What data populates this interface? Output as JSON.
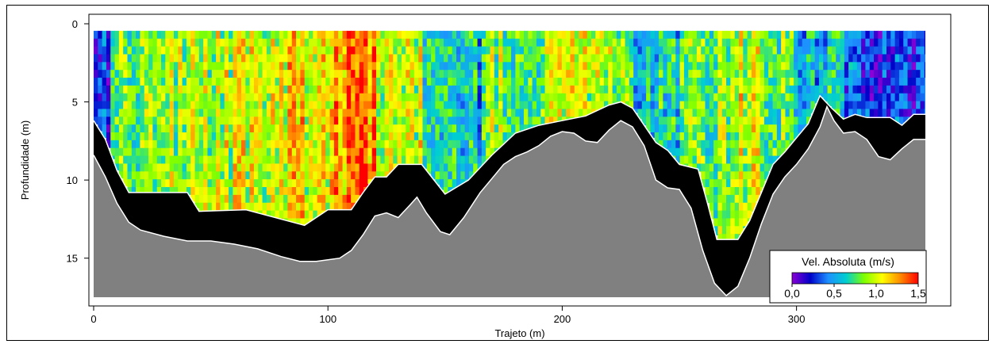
{
  "chart_data": {
    "type": "heatmap",
    "xlabel": "Trajeto (m)",
    "ylabel": "Profundidade (m)",
    "xlim": [
      0,
      355
    ],
    "ylim": [
      0,
      17.5
    ],
    "x_ticks": [
      {
        "value": 0,
        "label": "0"
      },
      {
        "value": 100,
        "label": "100"
      },
      {
        "value": 200,
        "label": "200"
      },
      {
        "value": 300,
        "label": "300"
      }
    ],
    "y_ticks": [
      {
        "value": 0,
        "label": "0"
      },
      {
        "value": 5,
        "label": "5"
      },
      {
        "value": 10,
        "label": "10"
      },
      {
        "value": 15,
        "label": "15"
      }
    ],
    "colorbar": {
      "title": "Vel. Absoluta (m/s)",
      "min": 0.0,
      "max": 1.5,
      "ticks": [
        {
          "value": 0.0,
          "label": "0,0"
        },
        {
          "value": 0.5,
          "label": "0,5"
        },
        {
          "value": 1.0,
          "label": "1,0"
        },
        {
          "value": 1.5,
          "label": "1,5"
        }
      ],
      "colors": [
        "#8b00d6",
        "#0000c8",
        "#1e90ff",
        "#00ced1",
        "#7fff00",
        "#ffff00",
        "#ff8c00",
        "#ff0000"
      ]
    },
    "colors": {
      "bottom": "#808080",
      "no_data": "#000000",
      "bottom_line": "#ffffff"
    },
    "bottom_profile": [
      [
        0,
        8.4
      ],
      [
        5,
        9.8
      ],
      [
        10,
        11.5
      ],
      [
        15,
        12.7
      ],
      [
        20,
        13.2
      ],
      [
        30,
        13.6
      ],
      [
        40,
        13.9
      ],
      [
        50,
        13.9
      ],
      [
        60,
        14.1
      ],
      [
        70,
        14.4
      ],
      [
        80,
        14.9
      ],
      [
        88,
        15.2
      ],
      [
        95,
        15.2
      ],
      [
        100,
        15.1
      ],
      [
        105,
        15.0
      ],
      [
        110,
        14.5
      ],
      [
        115,
        13.5
      ],
      [
        120,
        12.3
      ],
      [
        125,
        12.1
      ],
      [
        130,
        12.4
      ],
      [
        135,
        11.6
      ],
      [
        138,
        11.1
      ],
      [
        142,
        12.1
      ],
      [
        148,
        13.3
      ],
      [
        152,
        13.5
      ],
      [
        158,
        12.4
      ],
      [
        165,
        10.8
      ],
      [
        170,
        9.9
      ],
      [
        175,
        9.0
      ],
      [
        180,
        8.5
      ],
      [
        185,
        8.2
      ],
      [
        190,
        7.8
      ],
      [
        195,
        7.2
      ],
      [
        200,
        6.9
      ],
      [
        205,
        7.0
      ],
      [
        210,
        7.5
      ],
      [
        215,
        7.6
      ],
      [
        220,
        6.8
      ],
      [
        225,
        6.2
      ],
      [
        230,
        6.6
      ],
      [
        235,
        7.8
      ],
      [
        240,
        10.0
      ],
      [
        245,
        10.5
      ],
      [
        250,
        10.6
      ],
      [
        255,
        11.8
      ],
      [
        260,
        14.5
      ],
      [
        265,
        16.6
      ],
      [
        270,
        17.4
      ],
      [
        275,
        16.8
      ],
      [
        280,
        15.0
      ],
      [
        285,
        12.8
      ],
      [
        290,
        10.9
      ],
      [
        295,
        9.8
      ],
      [
        300,
        9.0
      ],
      [
        305,
        8.0
      ],
      [
        310,
        6.6
      ],
      [
        313,
        5.3
      ],
      [
        316,
        6.2
      ],
      [
        320,
        7.0
      ],
      [
        325,
        6.9
      ],
      [
        330,
        7.4
      ],
      [
        335,
        8.5
      ],
      [
        340,
        8.7
      ],
      [
        345,
        8.0
      ],
      [
        350,
        7.4
      ],
      [
        355,
        7.4
      ]
    ],
    "data_bottom_profile": [
      [
        0,
        6.2
      ],
      [
        5,
        7.4
      ],
      [
        10,
        9.4
      ],
      [
        15,
        10.8
      ],
      [
        40,
        10.8
      ],
      [
        45,
        12.0
      ],
      [
        65,
        11.9
      ],
      [
        90,
        12.9
      ],
      [
        100,
        11.9
      ],
      [
        110,
        11.9
      ],
      [
        115,
        10.8
      ],
      [
        120,
        9.8
      ],
      [
        125,
        9.8
      ],
      [
        130,
        9.0
      ],
      [
        140,
        9.0
      ],
      [
        150,
        10.9
      ],
      [
        160,
        10.0
      ],
      [
        165,
        9.2
      ],
      [
        170,
        8.4
      ],
      [
        180,
        7.0
      ],
      [
        190,
        6.5
      ],
      [
        200,
        6.2
      ],
      [
        210,
        5.9
      ],
      [
        220,
        5.2
      ],
      [
        225,
        5.0
      ],
      [
        230,
        5.4
      ],
      [
        240,
        7.6
      ],
      [
        245,
        8.1
      ],
      [
        250,
        9.0
      ],
      [
        258,
        9.3
      ],
      [
        262,
        11.5
      ],
      [
        266,
        13.8
      ],
      [
        275,
        13.8
      ],
      [
        280,
        12.6
      ],
      [
        285,
        10.8
      ],
      [
        290,
        9.0
      ],
      [
        295,
        8.2
      ],
      [
        300,
        7.3
      ],
      [
        305,
        6.4
      ],
      [
        310,
        4.6
      ],
      [
        315,
        5.4
      ],
      [
        320,
        6.1
      ],
      [
        325,
        5.8
      ],
      [
        330,
        6.0
      ],
      [
        340,
        6.0
      ],
      [
        345,
        6.5
      ],
      [
        350,
        5.8
      ],
      [
        355,
        5.8
      ]
    ],
    "regions": [
      {
        "x": [
          0,
          8
        ],
        "level": 0.35
      },
      {
        "x": [
          8,
          30
        ],
        "level": 0.75
      },
      {
        "x": [
          30,
          60
        ],
        "level": 0.95
      },
      {
        "x": [
          60,
          90
        ],
        "level": 1.05
      },
      {
        "x": [
          90,
          100
        ],
        "level": 1.0
      },
      {
        "x": [
          100,
          120
        ],
        "level": 1.3
      },
      {
        "x": [
          120,
          140
        ],
        "level": 1.0
      },
      {
        "x": [
          140,
          165
        ],
        "level": 0.6
      },
      {
        "x": [
          165,
          190
        ],
        "level": 0.85
      },
      {
        "x": [
          190,
          230
        ],
        "level": 0.95
      },
      {
        "x": [
          230,
          250
        ],
        "level": 0.65
      },
      {
        "x": [
          250,
          275
        ],
        "level": 0.8
      },
      {
        "x": [
          275,
          285
        ],
        "level": 1.05
      },
      {
        "x": [
          285,
          300
        ],
        "level": 0.8
      },
      {
        "x": [
          300,
          320
        ],
        "level": 0.55
      },
      {
        "x": [
          320,
          355
        ],
        "level": 0.3
      }
    ]
  }
}
